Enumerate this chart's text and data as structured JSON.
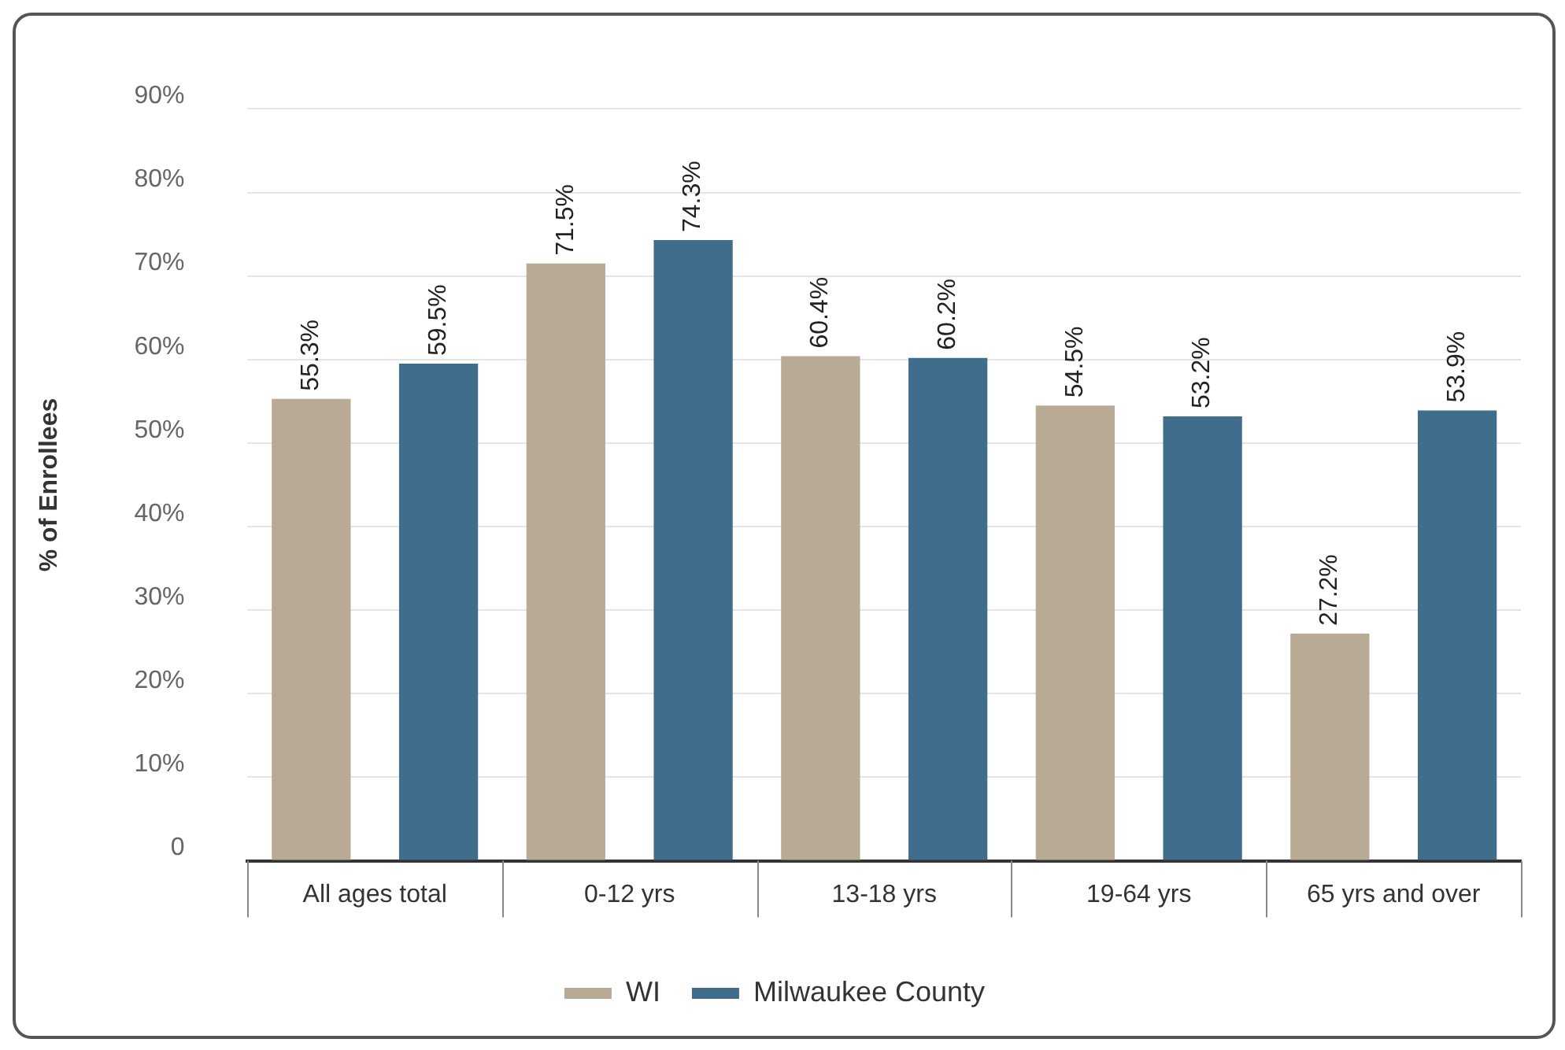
{
  "chart_data": {
    "type": "bar",
    "ylabel": "% of Enrollees",
    "categories": [
      "All ages total",
      "0-12 yrs",
      "13-18 yrs",
      "19-64 yrs",
      "65 yrs and over"
    ],
    "series": [
      {
        "name": "WI",
        "color": "#b9aa96",
        "values": [
          55.3,
          71.5,
          60.4,
          54.5,
          27.2
        ],
        "value_labels": [
          "55.3%",
          "71.5%",
          "60.4%",
          "54.5%",
          "27.2%"
        ]
      },
      {
        "name": "Milwaukee County",
        "color": "#416d8c",
        "values": [
          59.5,
          74.3,
          60.2,
          53.2,
          53.9
        ],
        "value_labels": [
          "59.5%",
          "74.3%",
          "60.2%",
          "53.2%",
          "53.9%"
        ]
      }
    ],
    "ylim": [
      0,
      90
    ],
    "yticks": [
      0,
      {
        "value": 10,
        "label": "10%"
      },
      {
        "value": 20,
        "label": "20%"
      },
      {
        "value": 30,
        "label": "30%"
      },
      {
        "value": 40,
        "label": "40%"
      },
      {
        "value": 50,
        "label": "50%"
      },
      {
        "value": 60,
        "label": "60%"
      },
      {
        "value": 70,
        "label": "70%"
      },
      {
        "value": 80,
        "label": "80%"
      },
      {
        "value": 90,
        "label": "90%"
      }
    ],
    "grid": "y",
    "legend": "bottom"
  }
}
